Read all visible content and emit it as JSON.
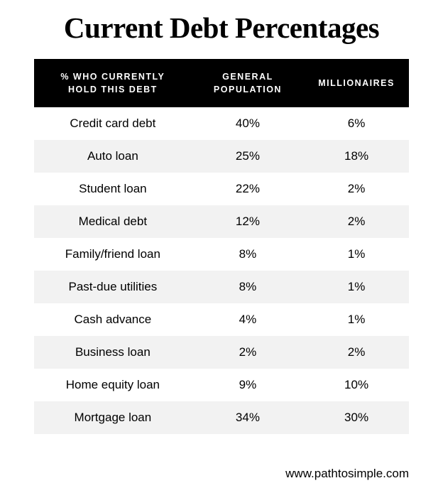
{
  "title": "Current Debt Percentages",
  "table": {
    "type": "table",
    "header_bg": "#000000",
    "header_fg": "#ffffff",
    "row_even_bg": "#f2f2f2",
    "row_odd_bg": "#ffffff",
    "text_color": "#000000",
    "header_fontsize_pt": 9,
    "cell_fontsize_pt": 13,
    "columns": [
      {
        "label_line1": "% WHO CURRENTLY",
        "label_line2": "HOLD THIS DEBT",
        "width_pct": 42,
        "align": "center"
      },
      {
        "label_line1": "GENERAL",
        "label_line2": "POPULATION",
        "width_pct": 30,
        "align": "center"
      },
      {
        "label_line1": "MILLIONAIRES",
        "label_line2": "",
        "width_pct": 28,
        "align": "center"
      }
    ],
    "rows": [
      {
        "label": "Credit card debt",
        "gen": "40%",
        "mil": "6%"
      },
      {
        "label": "Auto loan",
        "gen": "25%",
        "mil": "18%"
      },
      {
        "label": "Student loan",
        "gen": "22%",
        "mil": "2%"
      },
      {
        "label": "Medical debt",
        "gen": "12%",
        "mil": "2%"
      },
      {
        "label": "Family/friend loan",
        "gen": "8%",
        "mil": "1%"
      },
      {
        "label": "Past-due utilities",
        "gen": "8%",
        "mil": "1%"
      },
      {
        "label": "Cash advance",
        "gen": "4%",
        "mil": "1%"
      },
      {
        "label": "Business loan",
        "gen": "2%",
        "mil": "2%"
      },
      {
        "label": "Home equity loan",
        "gen": "9%",
        "mil": "10%"
      },
      {
        "label": "Mortgage loan",
        "gen": "34%",
        "mil": "30%"
      }
    ]
  },
  "footer": "www.pathtosimple.com"
}
